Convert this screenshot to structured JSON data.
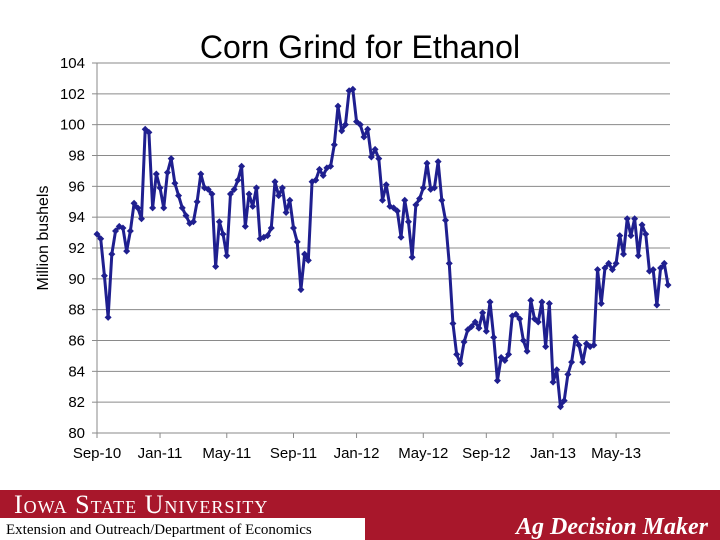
{
  "chart_data": {
    "type": "line",
    "title": "Corn Grind for Ethanol",
    "y_label": "Million bushels",
    "categories": [
      "Sep-10",
      null,
      null,
      null,
      null,
      null,
      null,
      null,
      null,
      null,
      null,
      null,
      null,
      null,
      null,
      null,
      null,
      "Jan-11",
      null,
      null,
      null,
      null,
      null,
      null,
      null,
      null,
      null,
      null,
      null,
      null,
      null,
      null,
      null,
      null,
      null,
      "May-11",
      null,
      null,
      null,
      null,
      null,
      null,
      null,
      null,
      null,
      null,
      null,
      null,
      null,
      null,
      null,
      null,
      null,
      "Sep-11",
      null,
      null,
      null,
      null,
      null,
      null,
      null,
      null,
      null,
      null,
      null,
      null,
      null,
      null,
      null,
      null,
      "Jan-12",
      null,
      null,
      null,
      null,
      null,
      null,
      null,
      null,
      null,
      null,
      null,
      null,
      null,
      null,
      null,
      null,
      null,
      "May-12",
      null,
      null,
      null,
      null,
      null,
      null,
      null,
      null,
      null,
      null,
      null,
      null,
      null,
      null,
      null,
      null,
      "Sep-12",
      null,
      null,
      null,
      null,
      null,
      null,
      null,
      null,
      null,
      null,
      null,
      null,
      null,
      null,
      null,
      null,
      null,
      "Jan-13",
      null,
      null,
      null,
      null,
      null,
      null,
      null,
      null,
      null,
      null,
      null,
      null,
      null,
      null,
      null,
      null,
      "May-13",
      null,
      null,
      null,
      null,
      null,
      null,
      null,
      null,
      null,
      null,
      null,
      null,
      null,
      null
    ],
    "values": [
      92.9,
      92.6,
      90.2,
      87.5,
      91.6,
      93.1,
      93.4,
      93.3,
      91.8,
      93.1,
      94.9,
      94.6,
      93.9,
      99.7,
      99.5,
      94.6,
      96.8,
      95.9,
      94.6,
      96.9,
      97.8,
      96.2,
      95.4,
      94.6,
      94.1,
      93.6,
      93.7,
      95.0,
      96.8,
      95.9,
      95.8,
      95.5,
      90.8,
      93.7,
      92.9,
      91.5,
      95.5,
      95.8,
      96.4,
      97.3,
      93.4,
      95.5,
      94.7,
      95.9,
      92.6,
      92.7,
      92.8,
      93.3,
      96.3,
      95.4,
      95.9,
      94.3,
      95.1,
      93.3,
      92.4,
      89.3,
      91.6,
      91.2,
      96.3,
      96.4,
      97.1,
      96.7,
      97.2,
      97.3,
      98.7,
      101.2,
      99.6,
      100.0,
      102.2,
      102.3,
      100.2,
      100.0,
      99.2,
      99.7,
      97.9,
      98.4,
      97.8,
      95.1,
      96.1,
      94.7,
      94.6,
      94.4,
      92.7,
      95.1,
      93.7,
      91.4,
      94.8,
      95.2,
      95.9,
      97.5,
      95.8,
      95.9,
      97.6,
      95.1,
      93.8,
      91.0,
      87.1,
      85.1,
      84.5,
      85.9,
      86.7,
      86.9,
      87.2,
      86.8,
      87.8,
      86.6,
      88.5,
      86.2,
      83.4,
      84.9,
      84.7,
      85.1,
      87.6,
      87.7,
      87.4,
      86.0,
      85.3,
      88.6,
      87.4,
      87.2,
      88.5,
      85.6,
      88.4,
      83.3,
      84.1,
      81.7,
      82.1,
      83.8,
      84.6,
      86.2,
      85.7,
      84.6,
      85.8,
      85.6,
      85.7,
      90.6,
      88.4,
      90.7,
      91.0,
      90.6,
      91.0,
      92.8,
      91.6,
      93.9,
      92.8,
      93.9,
      91.5,
      93.5,
      92.9,
      90.5,
      90.6,
      88.3,
      90.7,
      91.0,
      89.6
    ],
    "color": "#1f1f8f",
    "ylim": [
      80,
      104
    ],
    "yticks": [
      80,
      82,
      84,
      86,
      88,
      90,
      92,
      94,
      96,
      98,
      100,
      102,
      104
    ],
    "grid": true
  },
  "footer": {
    "university": "Iowa State University",
    "department": "Extension and Outreach/Department of Economics",
    "brand": "Ag Decision Maker"
  }
}
